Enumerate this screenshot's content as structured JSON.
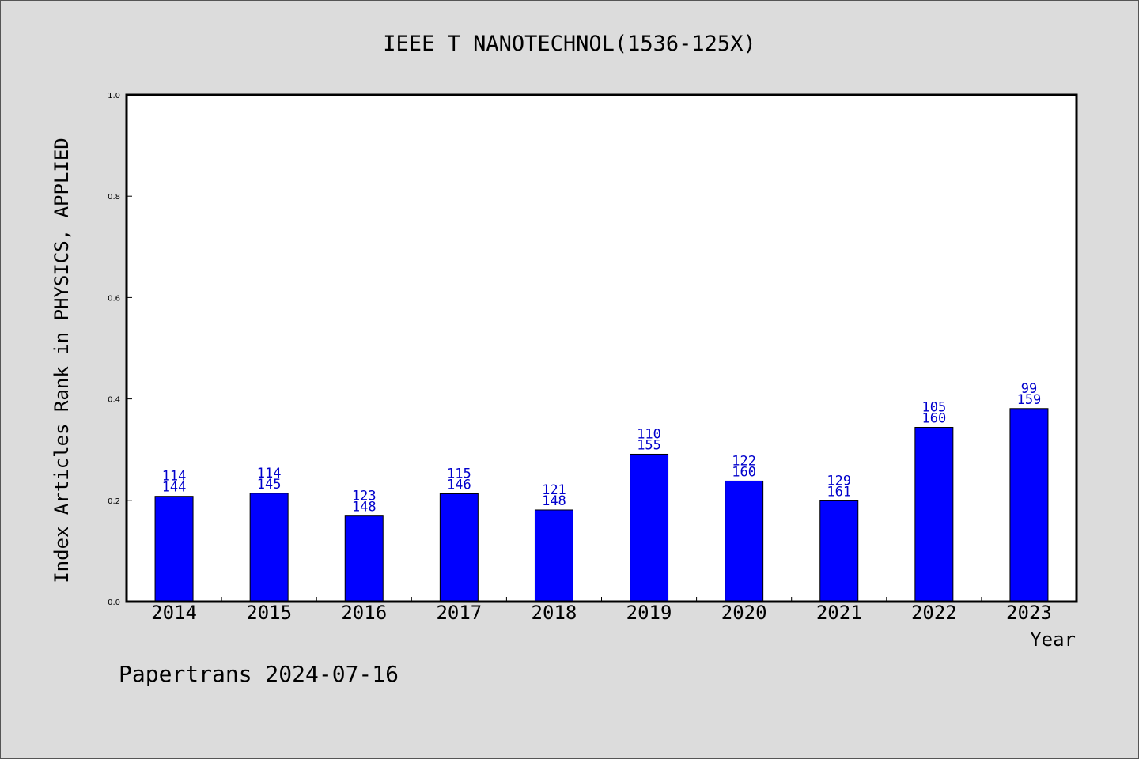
{
  "chart_data": {
    "type": "bar",
    "title": "IEEE T NANOTECHNOL(1536-125X)",
    "xlabel": "Year",
    "ylabel": "Index Articles Rank in PHYSICS, APPLIED",
    "ylim": [
      0,
      1.0
    ],
    "yticks": [
      "0.0",
      "0.2",
      "0.4",
      "0.6",
      "0.8",
      "1.0"
    ],
    "categories": [
      "2014",
      "2015",
      "2016",
      "2017",
      "2018",
      "2019",
      "2020",
      "2021",
      "2022",
      "2023"
    ],
    "values": [
      0.208,
      0.214,
      0.169,
      0.213,
      0.181,
      0.291,
      0.238,
      0.199,
      0.344,
      0.381
    ],
    "labels_top": [
      "114",
      "114",
      "123",
      "115",
      "121",
      "110",
      "122",
      "129",
      "105",
      "99"
    ],
    "labels_bottom": [
      "144",
      "145",
      "148",
      "146",
      "148",
      "155",
      "160",
      "161",
      "160",
      "159"
    ],
    "bar_color": "#0000ff",
    "label_color": "#0000cc",
    "grid": false,
    "legend": "none"
  },
  "footer": {
    "text": "Papertrans 2024-07-16"
  }
}
